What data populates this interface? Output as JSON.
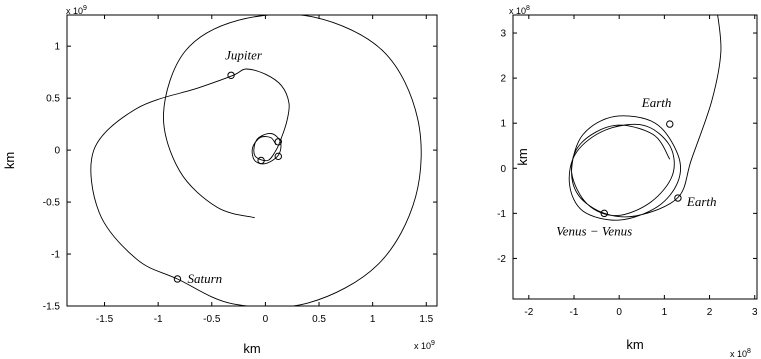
{
  "chart_data": [
    {
      "type": "line",
      "title": "",
      "xlabel": "km",
      "ylabel": "km",
      "x_multiplier": "x 10",
      "x_multiplier_exp": "9",
      "y_multiplier": "x 10",
      "y_multiplier_exp": "9",
      "xlim": [
        -1.85,
        1.6
      ],
      "ylim": [
        -1.5,
        1.3
      ],
      "xticks": [
        -1.5,
        -1,
        -0.5,
        0,
        0.5,
        1,
        1.5
      ],
      "xtick_labels": [
        "-1.5",
        "-1",
        "-0.5",
        "0",
        "0.5",
        "1",
        "1.5"
      ],
      "yticks": [
        -1.5,
        -1,
        -0.5,
        0,
        0.5,
        1
      ],
      "ytick_labels": [
        "-1.5",
        "-1",
        "-0.5",
        "0",
        "0.5",
        "1"
      ],
      "grid": false,
      "series": [
        {
          "values": [
            [
              0.1,
              0.05
            ],
            [
              0.05,
              0.12
            ],
            [
              -0.05,
              0.12
            ],
            [
              -0.12,
              0.02
            ],
            [
              -0.1,
              -0.1
            ],
            [
              0.0,
              -0.13
            ],
            [
              0.12,
              -0.05
            ],
            [
              0.14,
              0.08
            ],
            [
              0.05,
              0.16
            ],
            [
              -0.08,
              0.1
            ],
            [
              -0.1,
              -0.05
            ],
            [
              0.02,
              -0.1
            ],
            [
              0.1,
              0.0
            ],
            [
              0.15,
              0.12
            ],
            [
              0.2,
              0.28
            ],
            [
              0.22,
              0.45
            ],
            [
              0.15,
              0.62
            ],
            [
              0.0,
              0.73
            ],
            [
              -0.18,
              0.78
            ],
            [
              -0.3,
              0.72
            ],
            [
              -0.62,
              0.6
            ],
            [
              -1.2,
              0.4
            ],
            [
              -1.6,
              0.0
            ],
            [
              -1.55,
              -0.6
            ],
            [
              -1.2,
              -1.05
            ],
            [
              -0.82,
              -1.24
            ],
            [
              -0.3,
              -1.48
            ],
            [
              0.4,
              -1.47
            ],
            [
              1.05,
              -1.1
            ],
            [
              1.4,
              -0.45
            ],
            [
              1.42,
              0.3
            ],
            [
              1.1,
              0.95
            ],
            [
              0.45,
              1.28
            ],
            [
              -0.25,
              1.25
            ],
            [
              -0.75,
              0.95
            ],
            [
              -0.95,
              0.35
            ],
            [
              -0.8,
              -0.2
            ],
            [
              -0.45,
              -0.55
            ],
            [
              -0.1,
              -0.65
            ]
          ]
        }
      ],
      "annotations": [
        {
          "text": "Jupiter",
          "x": -0.32,
          "y": 0.72
        },
        {
          "text": "Saturn",
          "x": -0.82,
          "y": -1.24
        }
      ],
      "markers": [
        [
          -0.32,
          0.72
        ],
        [
          -0.82,
          -1.24
        ],
        [
          0.12,
          0.08
        ],
        [
          0.12,
          -0.06
        ],
        [
          -0.04,
          -0.1
        ]
      ]
    },
    {
      "type": "line",
      "title": "",
      "xlabel": "km",
      "ylabel": "km",
      "x_multiplier": "x 10",
      "x_multiplier_exp": "8",
      "y_multiplier": "x 10",
      "y_multiplier_exp": "8",
      "xlim": [
        -2.35,
        3.05
      ],
      "ylim": [
        -2.9,
        3.4
      ],
      "xticks": [
        -2,
        -1,
        0,
        1,
        2,
        3
      ],
      "xtick_labels": [
        "-2",
        "-1",
        "0",
        "1",
        "2",
        "3"
      ],
      "yticks": [
        -2,
        -1,
        0,
        1,
        2,
        3
      ],
      "ytick_labels": [
        "-2",
        "-1",
        "0",
        "1",
        "2",
        "3"
      ],
      "grid": false,
      "series": [
        {
          "values": [
            [
              2.15,
              3.6
            ],
            [
              2.25,
              2.6
            ],
            [
              2.05,
              1.5
            ],
            [
              1.6,
              0.2
            ],
            [
              1.3,
              -0.65
            ],
            [
              0.4,
              -1.05
            ],
            [
              -0.33,
              -1.0
            ],
            [
              -0.9,
              -0.6
            ],
            [
              -1.05,
              0.0
            ],
            [
              -0.8,
              0.75
            ],
            [
              -0.1,
              1.15
            ],
            [
              0.8,
              1.0
            ],
            [
              1.3,
              0.3
            ],
            [
              1.3,
              -0.3
            ],
            [
              0.85,
              -0.85
            ],
            [
              0.0,
              -1.15
            ],
            [
              -0.8,
              -0.95
            ],
            [
              -1.1,
              -0.35
            ],
            [
              -0.95,
              0.35
            ],
            [
              -0.3,
              0.85
            ],
            [
              0.55,
              0.95
            ],
            [
              1.12,
              0.5
            ],
            [
              1.18,
              -0.15
            ],
            [
              0.7,
              -0.75
            ],
            [
              -0.05,
              -1.05
            ],
            [
              -0.7,
              -0.8
            ],
            [
              -1.05,
              -0.1
            ],
            [
              -0.85,
              0.55
            ],
            [
              -0.1,
              0.95
            ],
            [
              0.75,
              0.75
            ],
            [
              1.12,
              0.2
            ]
          ]
        }
      ],
      "annotations": [
        {
          "text": "Earth",
          "x": 1.12,
          "y": 0.98
        },
        {
          "text": "Earth",
          "x": 1.3,
          "y": -0.66
        },
        {
          "text": "Venus − Venus",
          "x": -0.33,
          "y": -1.0
        }
      ],
      "markers": [
        [
          1.12,
          0.98
        ],
        [
          1.3,
          -0.66
        ],
        [
          -0.33,
          -1.0
        ]
      ]
    }
  ]
}
